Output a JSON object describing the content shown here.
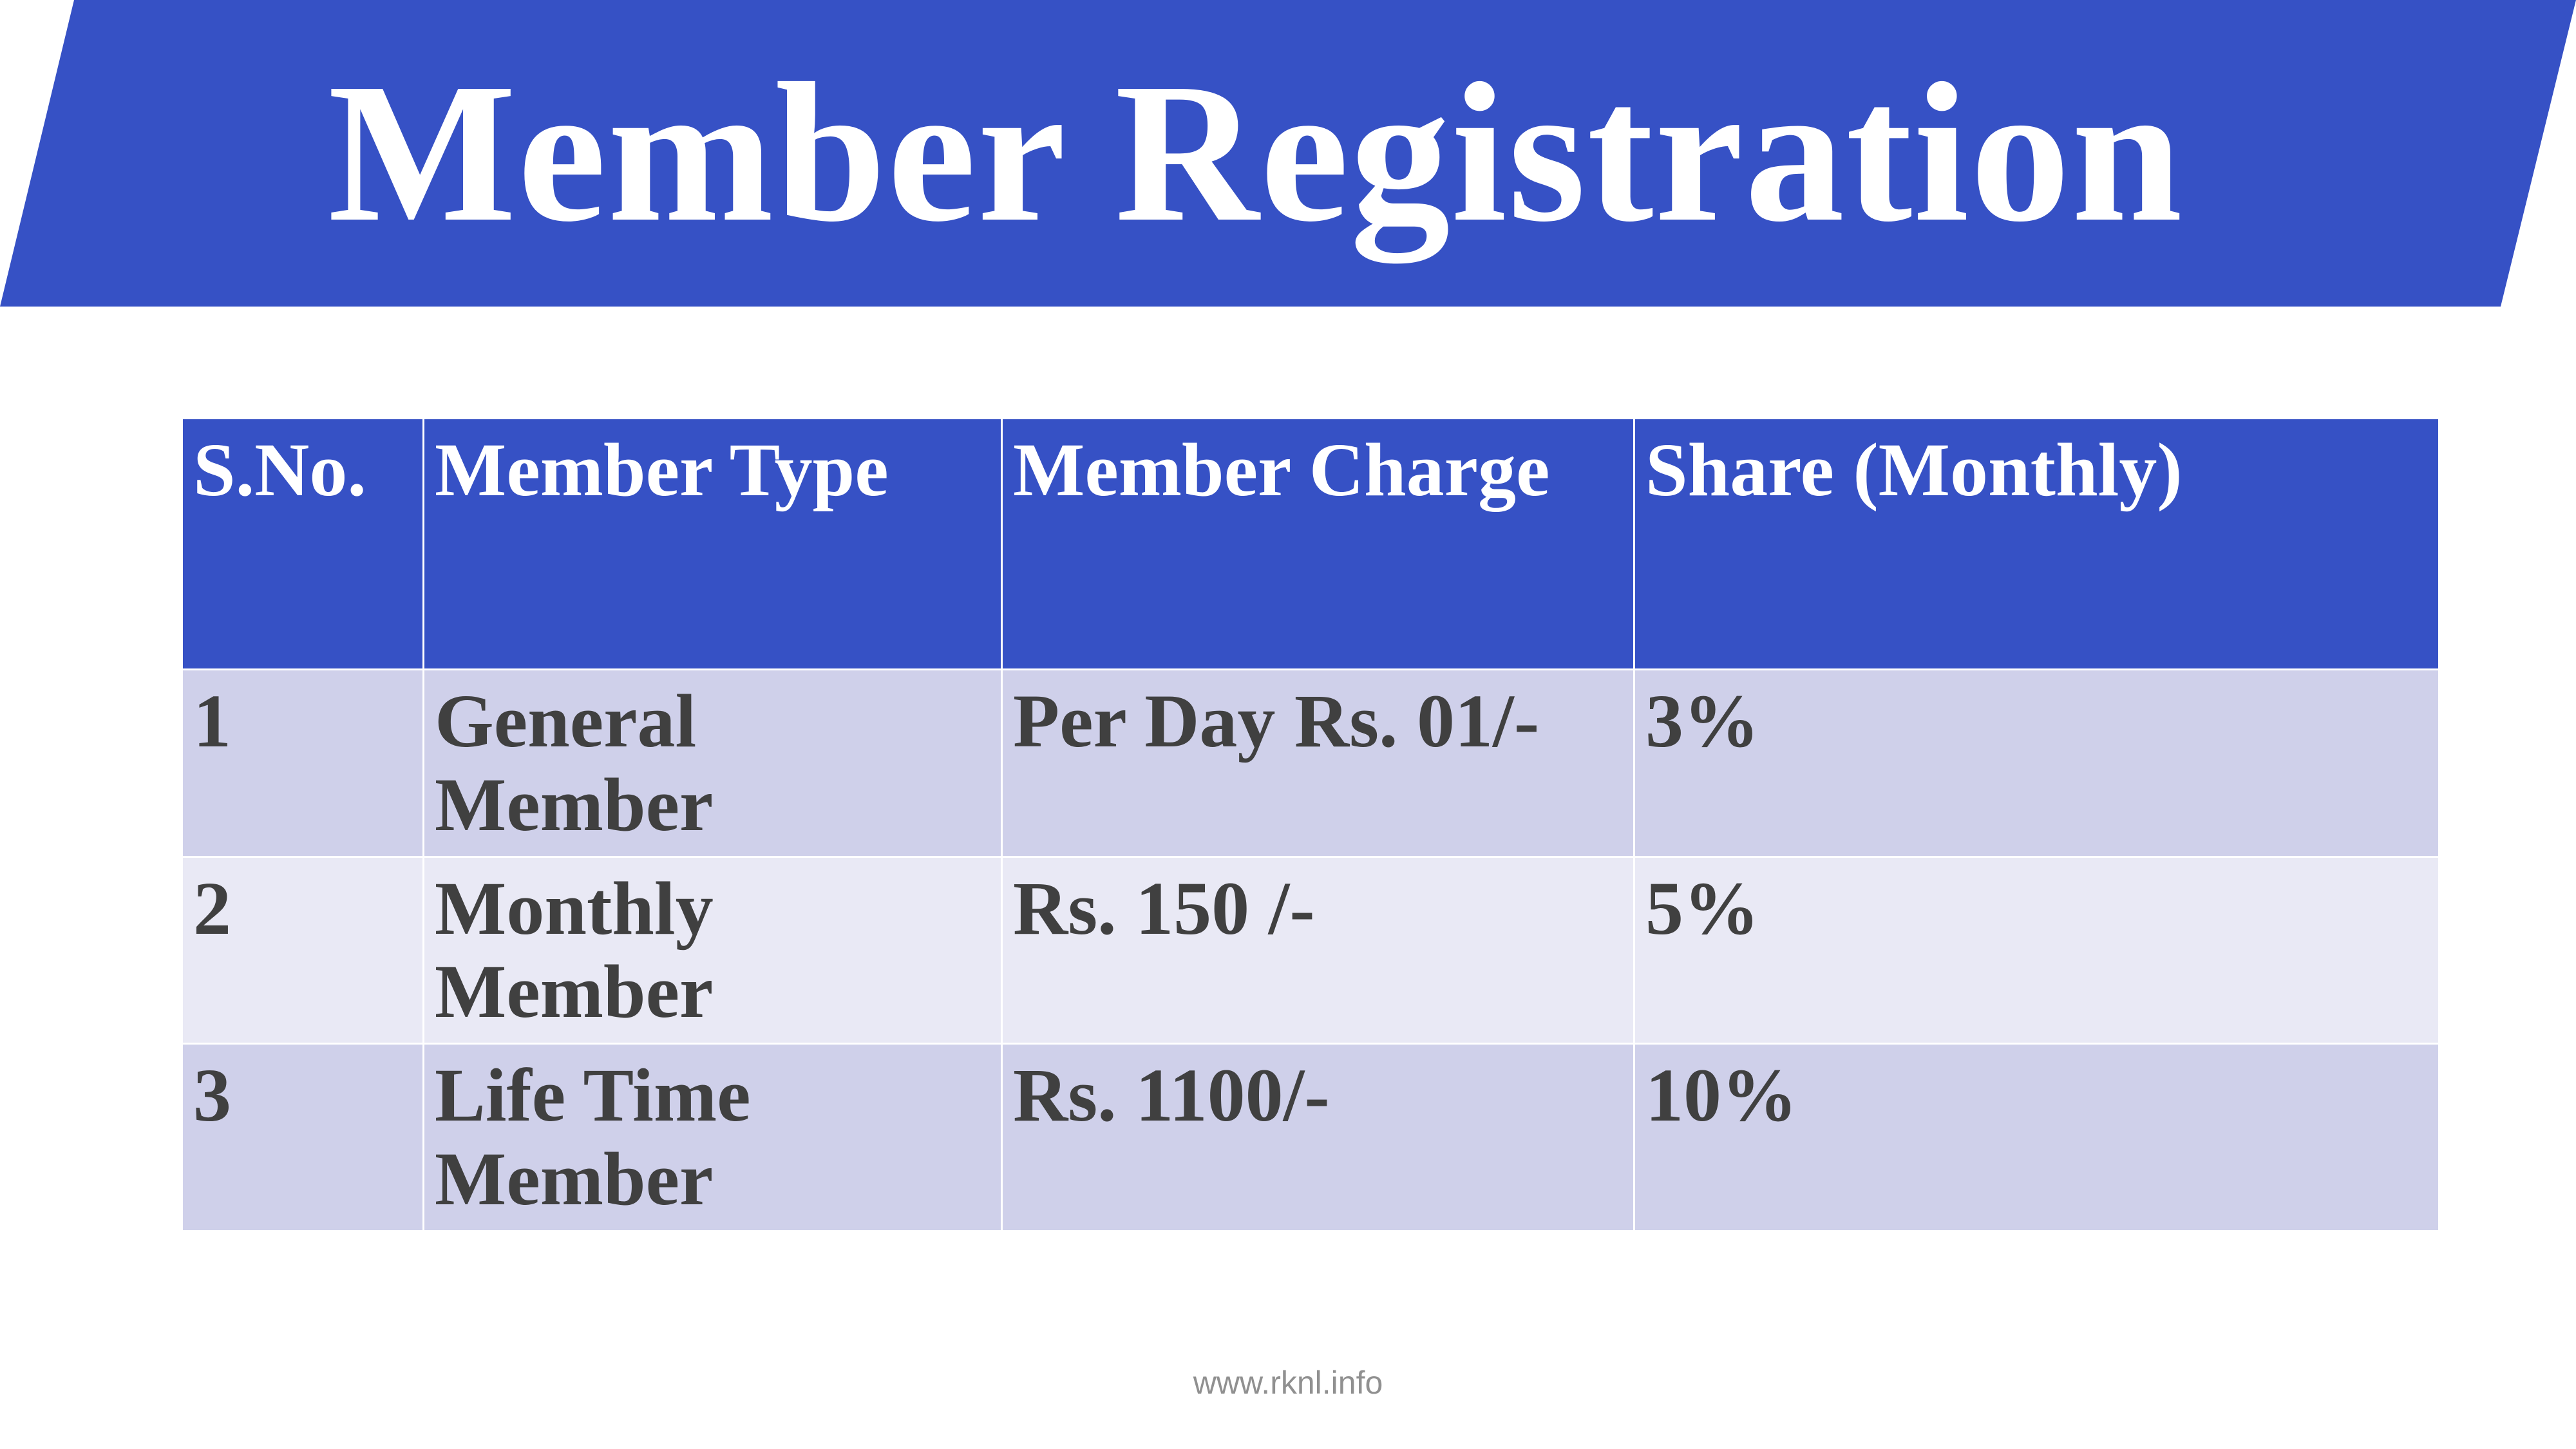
{
  "title": "Member Registration",
  "colors": {
    "banner": "#3651C5",
    "header": "#3651C5",
    "row_odd": "#CFD0EA",
    "row_even": "#E9E9F5",
    "text": "#404040"
  },
  "table": {
    "headers": [
      "S.No.",
      "Member Type",
      "Member Charge",
      "Share (Monthly)"
    ],
    "rows": [
      [
        "1",
        "General Member",
        "Per Day Rs. 01/-",
        "3%"
      ],
      [
        "2",
        "Monthly Member",
        "Rs. 150 /-",
        "5%"
      ],
      [
        "3",
        "Life Time Member",
        "Rs. 1100/-",
        "10%"
      ]
    ]
  },
  "footer": "www.rknl.info"
}
